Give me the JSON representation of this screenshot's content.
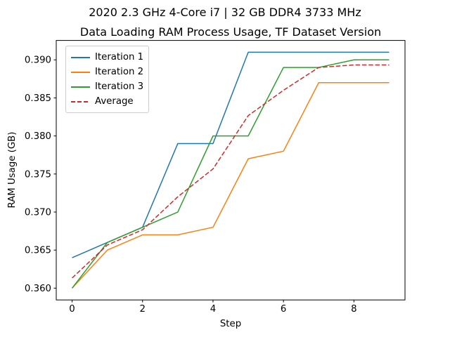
{
  "figure": {
    "suptitle": "2020 2.3 GHz 4-Core i7 | 32 GB DDR4 3733 MHz",
    "title": "Data Loading RAM Process Usage, TF Dataset Version"
  },
  "chart_data": {
    "type": "line",
    "suptitle": "2020 2.3 GHz 4-Core i7 | 32 GB DDR4 3733 MHz",
    "title": "Data Loading RAM Process Usage, TF Dataset Version",
    "xlabel": "Step",
    "ylabel": "RAM Usage (GB)",
    "x": [
      0,
      1,
      2,
      3,
      4,
      5,
      6,
      7,
      8,
      9
    ],
    "series": [
      {
        "name": "Iteration 1",
        "color": "#1f77b4",
        "style": "solid",
        "values": [
          0.364,
          0.366,
          0.368,
          0.379,
          0.379,
          0.391,
          0.391,
          0.391,
          0.391,
          0.391
        ]
      },
      {
        "name": "Iteration 2",
        "color": "#ff7f0e",
        "style": "solid",
        "values": [
          0.36,
          0.365,
          0.367,
          0.367,
          0.368,
          0.377,
          0.378,
          0.387,
          0.387,
          0.387
        ]
      },
      {
        "name": "Iteration 3",
        "color": "#2ca02c",
        "style": "solid",
        "values": [
          0.36,
          0.366,
          0.368,
          0.37,
          0.38,
          0.38,
          0.389,
          0.389,
          0.39,
          0.39
        ]
      },
      {
        "name": "Average",
        "color": "#d62728",
        "style": "dashed",
        "values": [
          0.36133,
          0.36567,
          0.36767,
          0.372,
          0.37567,
          0.38267,
          0.386,
          0.389,
          0.38933,
          0.38933
        ]
      }
    ],
    "xlim": [
      -0.45,
      9.45
    ],
    "ylim": [
      0.35845,
      0.39255
    ],
    "x_ticks": [
      "0",
      "2",
      "4",
      "6",
      "8"
    ],
    "x_tick_values": [
      0,
      2,
      4,
      6,
      8
    ],
    "y_ticks": [
      "0.360",
      "0.365",
      "0.370",
      "0.375",
      "0.380",
      "0.385",
      "0.390"
    ],
    "y_tick_values": [
      0.36,
      0.365,
      0.37,
      0.375,
      0.38,
      0.385,
      0.39
    ],
    "grid": false,
    "legend_position": "upper left"
  }
}
